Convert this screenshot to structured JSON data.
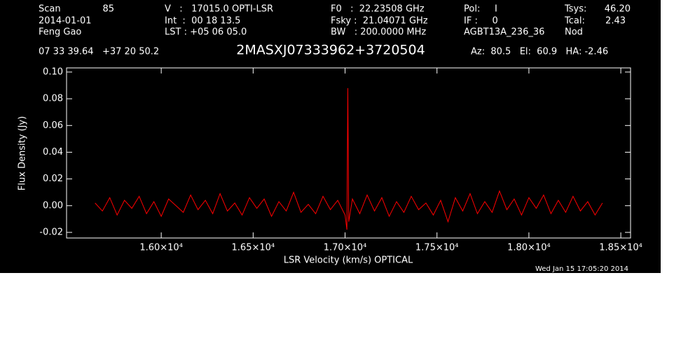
{
  "chart_data": {
    "type": "line",
    "title": "2MASXJ07333962+3720504",
    "header": {
      "scan_label": "Scan",
      "scan": "85",
      "date": "2014-01-01",
      "observer": "Feng Gao",
      "v": "V   :   17015.0 OPTI-LSR",
      "int": "Int  :  00 18 13.5",
      "lst": "LST : +05 06 05.0",
      "f0": "F0   :  22.23508 GHz",
      "fsky": "Fsky :  21.04071 GHz",
      "bw": "BW   : 200.0000 MHz",
      "pol": "Pol:     I",
      "if": "IF :     0",
      "project": "AGBT13A_236_36",
      "tsys_label": "Tsys:",
      "tsys": "46.20",
      "tcal_label": "Tcal:",
      "tcal": "2.43",
      "proc": "Nod",
      "coords": "07 33 39.64   +37 20 50.2",
      "azel": "Az:  80.5   El:  60.9   HA: -2.46"
    },
    "x_label": "LSR Velocity (km/s) OPTICAL",
    "y_label": "Flux Density (Jy)",
    "timestamp": "Wed Jan 15 17:05:20 2014",
    "xlim": [
      15485,
      18553
    ],
    "ylim": [
      -0.0242,
      0.1031
    ],
    "xticks": [
      {
        "value": 16000,
        "label": "1.60×10⁴"
      },
      {
        "value": 16500,
        "label": "1.65×10⁴"
      },
      {
        "value": 17000,
        "label": "1.70×10⁴"
      },
      {
        "value": 17500,
        "label": "1.75×10⁴"
      },
      {
        "value": 18000,
        "label": "1.80×10⁴"
      },
      {
        "value": 18500,
        "label": "1.85×10⁴"
      }
    ],
    "yticks": [
      {
        "value": -0.02,
        "label": "-0.02"
      },
      {
        "value": 0,
        "label": "0.00"
      },
      {
        "value": 0.02,
        "label": "0.02"
      },
      {
        "value": 0.04,
        "label": "0.04"
      },
      {
        "value": 0.06,
        "label": "0.06"
      },
      {
        "value": 0.08,
        "label": "0.08"
      },
      {
        "value": 0.1,
        "label": "0.10"
      }
    ],
    "x": [
      15640,
      15680,
      15720,
      15760,
      15800,
      15840,
      15880,
      15920,
      15960,
      16000,
      16040,
      16080,
      16120,
      16160,
      16200,
      16240,
      16280,
      16320,
      16360,
      16400,
      16440,
      16480,
      16520,
      16560,
      16600,
      16640,
      16680,
      16720,
      16760,
      16800,
      16840,
      16880,
      16920,
      16960,
      17000,
      17010,
      17015,
      17020,
      17040,
      17080,
      17120,
      17160,
      17200,
      17240,
      17280,
      17320,
      17360,
      17400,
      17440,
      17480,
      17520,
      17560,
      17600,
      17640,
      17680,
      17720,
      17760,
      17800,
      17840,
      17880,
      17920,
      17960,
      18000,
      18040,
      18080,
      18120,
      18160,
      18200,
      18240,
      18280,
      18320,
      18360,
      18400
    ],
    "series": [
      {
        "color": "#ff0000",
        "values": [
          0.002,
          -0.004,
          0.006,
          -0.007,
          0.004,
          -0.002,
          0.007,
          -0.006,
          0.003,
          -0.008,
          0.005,
          0,
          -0.005,
          0.008,
          -0.003,
          0.004,
          -0.006,
          0.009,
          -0.004,
          0.002,
          -0.007,
          0.006,
          -0.002,
          0.005,
          -0.008,
          0.003,
          -0.004,
          0.01,
          -0.005,
          0.001,
          -0.006,
          0.007,
          -0.003,
          0.004,
          -0.007,
          -0.018,
          0.088,
          -0.012,
          0.005,
          -0.006,
          0.008,
          -0.004,
          0.006,
          -0.008,
          0.003,
          -0.005,
          0.007,
          -0.003,
          0.002,
          -0.007,
          0.004,
          -0.012,
          0.006,
          -0.004,
          0.009,
          -0.006,
          0.003,
          -0.005,
          0.011,
          -0.003,
          0.005,
          -0.007,
          0.006,
          -0.002,
          0.008,
          -0.006,
          0.004,
          -0.005,
          0.007,
          -0.004,
          0.003,
          -0.007,
          0.002
        ]
      }
    ]
  }
}
